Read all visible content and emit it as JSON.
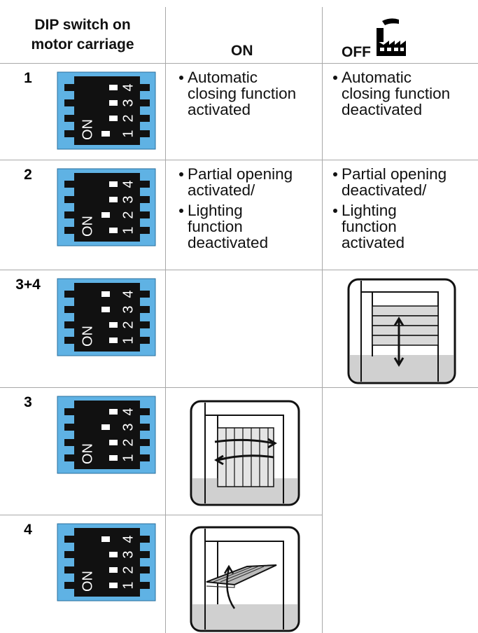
{
  "header": {
    "column_1": [
      "DIP switch on",
      "motor carriage"
    ],
    "column_2": "ON",
    "column_3": "OFF"
  },
  "dip_switch_labels": {
    "on": "ON",
    "numbers": [
      "1",
      "2",
      "3",
      "4"
    ]
  },
  "rows": [
    {
      "label": "1",
      "switches_on": [
        true,
        false,
        false,
        false
      ],
      "on": [
        [
          "Automatic",
          "closing function",
          "activated"
        ]
      ],
      "off": [
        [
          "Automatic",
          "closing function",
          "deactivated"
        ]
      ]
    },
    {
      "label": "2",
      "switches_on": [
        false,
        true,
        false,
        false
      ],
      "on": [
        [
          "Partial opening",
          "activated/"
        ],
        [
          "Lighting",
          "function",
          "deactivated"
        ]
      ],
      "off": [
        [
          "Partial opening",
          "deactivated/"
        ],
        [
          "Lighting",
          "function",
          "activated"
        ]
      ]
    },
    {
      "label": "3+4",
      "switches_on": [
        false,
        false,
        true,
        true
      ],
      "on": [],
      "off": []
    },
    {
      "label": "3",
      "switches_on": [
        false,
        false,
        true,
        false
      ],
      "on": [],
      "off": []
    },
    {
      "label": "4",
      "switches_on": [
        false,
        false,
        false,
        true
      ],
      "on": [],
      "off": []
    }
  ]
}
